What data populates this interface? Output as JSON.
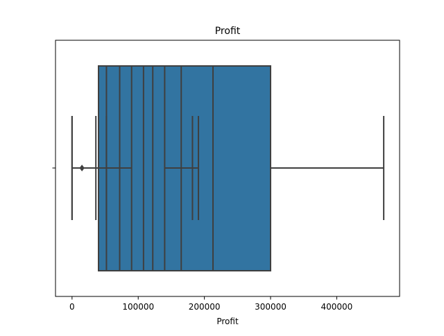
{
  "chart_data": {
    "type": "box",
    "title": "Profit",
    "xlabel": "Profit",
    "ylabel": "",
    "orientation": "horizontal",
    "xlim": [
      -25000,
      495000
    ],
    "x_ticks": [
      0,
      100000,
      200000,
      300000,
      400000
    ],
    "x_tick_labels": [
      "0",
      "100000",
      "200000",
      "300000",
      "400000"
    ],
    "grid": false,
    "legend": "none",
    "colors": {
      "box_fill": "#3274a1",
      "line": "#3f3f3f",
      "frame": "#000000"
    },
    "series": [
      {
        "stats": {
          "whislo": 0,
          "q1": 40000,
          "med": 213000,
          "q3": 300000,
          "whishi": 471000
        },
        "fliers": [
          15000
        ]
      },
      {
        "stats": {
          "whislo": 0,
          "q1": 72000,
          "med": 108000,
          "q3": 140000,
          "whishi": 191000
        },
        "fliers": []
      },
      {
        "stats": {
          "whislo": 36000,
          "q1": 90000,
          "med": 122000,
          "q3": 165000,
          "whishi": 182000
        },
        "fliers": []
      },
      {
        "stats": {
          "whislo": 52000,
          "q1": 52000,
          "med": 52000,
          "q3": 52000,
          "whishi": 52000
        },
        "fliers": []
      }
    ]
  }
}
